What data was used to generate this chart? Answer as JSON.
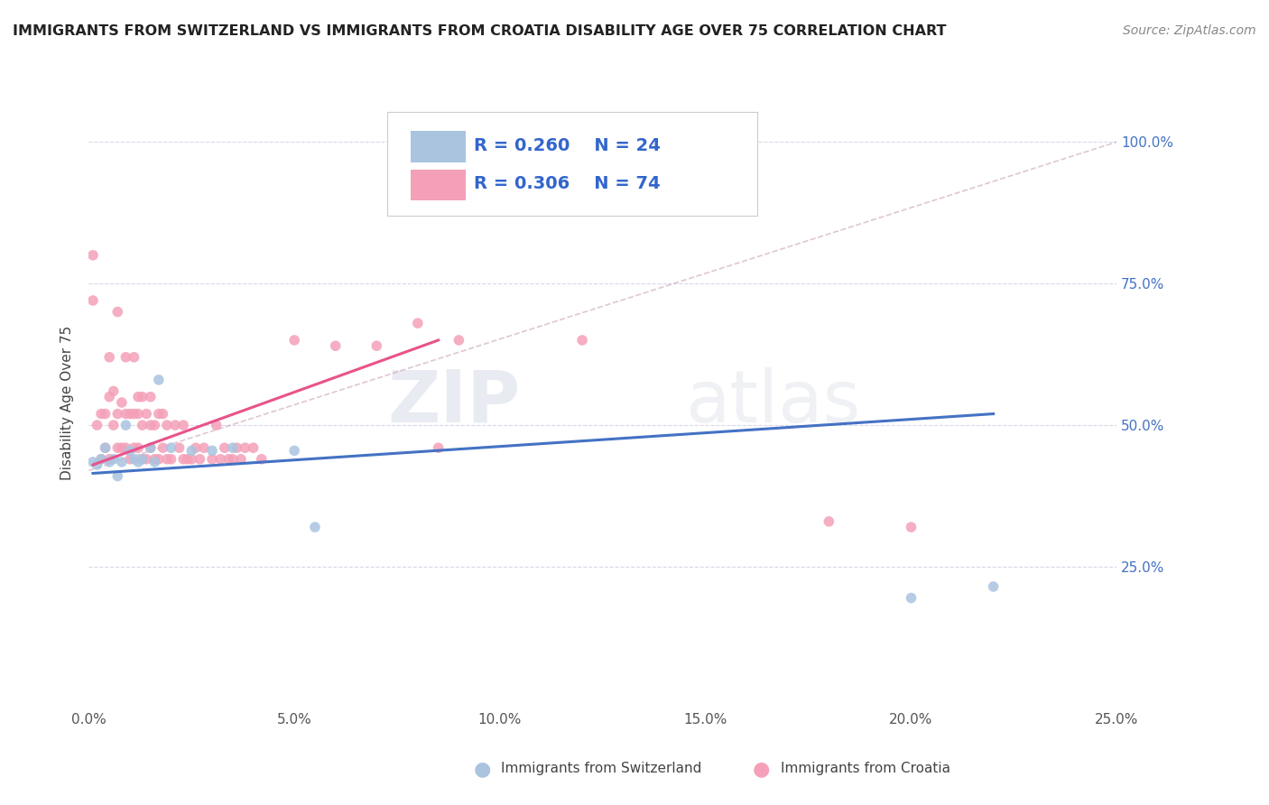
{
  "title": "IMMIGRANTS FROM SWITZERLAND VS IMMIGRANTS FROM CROATIA DISABILITY AGE OVER 75 CORRELATION CHART",
  "source": "Source: ZipAtlas.com",
  "xlabel_label": "Immigrants from Switzerland",
  "ylabel_label": "Disability Age Over 75",
  "xlim": [
    0.0,
    0.25
  ],
  "ylim": [
    0.0,
    1.08
  ],
  "xtick_labels": [
    "0.0%",
    "5.0%",
    "10.0%",
    "15.0%",
    "20.0%",
    "25.0%"
  ],
  "xtick_vals": [
    0.0,
    0.05,
    0.1,
    0.15,
    0.2,
    0.25
  ],
  "ytick_labels": [
    "25.0%",
    "50.0%",
    "75.0%",
    "100.0%"
  ],
  "ytick_vals": [
    0.25,
    0.5,
    0.75,
    1.0
  ],
  "color_switzerland": "#aac4e0",
  "color_croatia": "#f4a0b8",
  "line_color_switzerland": "#4472c4",
  "line_color_croatia": "#e8538a",
  "watermark_zip": "ZIP",
  "watermark_atlas": "atlas",
  "legend_r_switzerland": "R = 0.260",
  "legend_n_switzerland": "N = 24",
  "legend_r_croatia": "R = 0.306",
  "legend_n_croatia": "N = 74",
  "switzerland_x": [
    0.001,
    0.002,
    0.003,
    0.004,
    0.005,
    0.006,
    0.007,
    0.008,
    0.009,
    0.01,
    0.011,
    0.012,
    0.013,
    0.015,
    0.016,
    0.017,
    0.02,
    0.025,
    0.03,
    0.035,
    0.05,
    0.055,
    0.2,
    0.22
  ],
  "switzerland_y": [
    0.435,
    0.43,
    0.44,
    0.46,
    0.435,
    0.44,
    0.41,
    0.435,
    0.5,
    0.455,
    0.44,
    0.435,
    0.44,
    0.46,
    0.435,
    0.58,
    0.46,
    0.455,
    0.455,
    0.46,
    0.455,
    0.32,
    0.195,
    0.215
  ],
  "croatia_x": [
    0.001,
    0.001,
    0.002,
    0.003,
    0.003,
    0.004,
    0.004,
    0.005,
    0.005,
    0.005,
    0.006,
    0.006,
    0.007,
    0.007,
    0.007,
    0.008,
    0.008,
    0.009,
    0.009,
    0.009,
    0.01,
    0.01,
    0.011,
    0.011,
    0.011,
    0.012,
    0.012,
    0.012,
    0.013,
    0.013,
    0.013,
    0.014,
    0.014,
    0.015,
    0.015,
    0.015,
    0.016,
    0.016,
    0.017,
    0.017,
    0.018,
    0.018,
    0.019,
    0.019,
    0.02,
    0.021,
    0.022,
    0.023,
    0.023,
    0.024,
    0.025,
    0.026,
    0.027,
    0.028,
    0.03,
    0.031,
    0.032,
    0.033,
    0.034,
    0.035,
    0.036,
    0.037,
    0.038,
    0.04,
    0.042,
    0.05,
    0.06,
    0.07,
    0.08,
    0.085,
    0.09,
    0.12,
    0.18,
    0.2
  ],
  "croatia_y": [
    0.8,
    0.72,
    0.5,
    0.44,
    0.52,
    0.46,
    0.52,
    0.55,
    0.62,
    0.44,
    0.5,
    0.56,
    0.46,
    0.52,
    0.7,
    0.46,
    0.54,
    0.46,
    0.52,
    0.62,
    0.44,
    0.52,
    0.46,
    0.52,
    0.62,
    0.46,
    0.52,
    0.55,
    0.44,
    0.5,
    0.55,
    0.44,
    0.52,
    0.46,
    0.5,
    0.55,
    0.44,
    0.5,
    0.44,
    0.52,
    0.46,
    0.52,
    0.44,
    0.5,
    0.44,
    0.5,
    0.46,
    0.44,
    0.5,
    0.44,
    0.44,
    0.46,
    0.44,
    0.46,
    0.44,
    0.5,
    0.44,
    0.46,
    0.44,
    0.44,
    0.46,
    0.44,
    0.46,
    0.46,
    0.44,
    0.65,
    0.64,
    0.64,
    0.68,
    0.46,
    0.65,
    0.65,
    0.33,
    0.32
  ],
  "sw_line_x": [
    0.001,
    0.22
  ],
  "sw_line_y": [
    0.415,
    0.52
  ],
  "cr_line_x": [
    0.001,
    0.085
  ],
  "cr_line_y": [
    0.43,
    0.65
  ],
  "dash_line_x": [
    0.0,
    0.25
  ],
  "dash_line_y": [
    0.42,
    1.0
  ]
}
